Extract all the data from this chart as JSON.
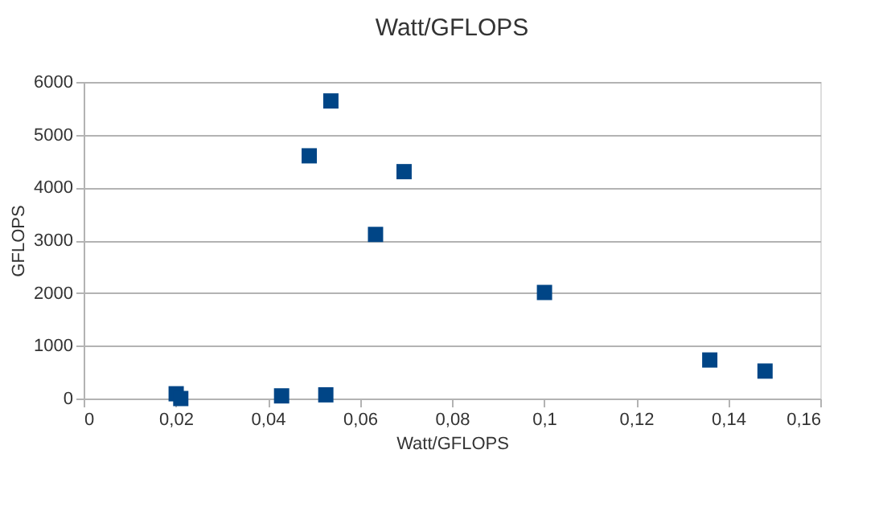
{
  "chart_data": {
    "type": "scatter",
    "title": "Watt/GFLOPS",
    "xlabel": "Watt/GFLOPS",
    "ylabel": "GFLOPS",
    "x": [
      0.0201,
      0.0211,
      0.043,
      0.0526,
      0.0537,
      0.049,
      0.0696,
      0.0634,
      0.1001,
      0.136,
      0.148
    ],
    "series": [
      {
        "color": "#004586",
        "values": [
          90,
          0,
          50,
          70,
          5640,
          4600,
          4300,
          3110,
          2010,
          730,
          520
        ]
      }
    ],
    "xlim": [
      0,
      0.16
    ],
    "xticks": [
      {
        "value": 0,
        "label": "0"
      },
      {
        "value": 0.02,
        "label": "0,02"
      },
      {
        "value": 0.04,
        "label": "0,04"
      },
      {
        "value": 0.06,
        "label": "0,06"
      },
      {
        "value": 0.08,
        "label": "0,08"
      },
      {
        "value": 0.1,
        "label": "0,1"
      },
      {
        "value": 0.12,
        "label": "0,12"
      },
      {
        "value": 0.14,
        "label": "0,14"
      },
      {
        "value": 0.16,
        "label": "0,16"
      }
    ],
    "ylim": [
      0,
      6000
    ],
    "yticks": [
      0,
      1000,
      2000,
      3000,
      4000,
      5000,
      6000
    ],
    "grid": "y",
    "marker": "square"
  }
}
